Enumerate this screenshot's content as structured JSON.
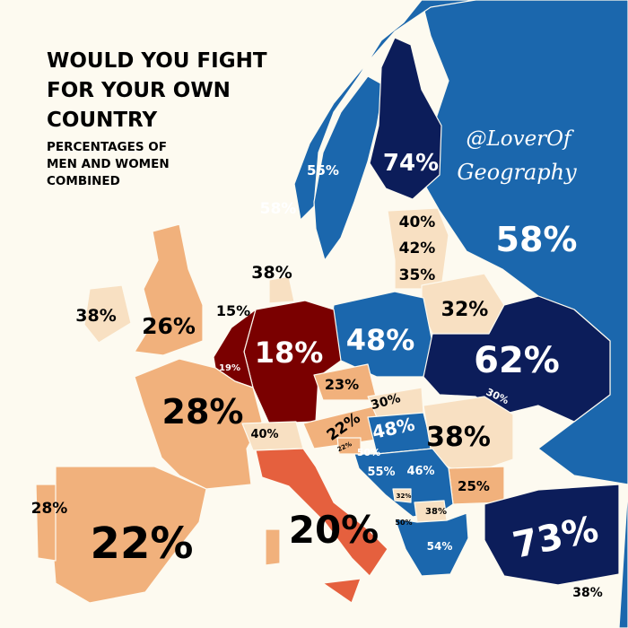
{
  "title": {
    "line1": "WOULD YOU FIGHT",
    "line2": "FOR YOUR OWN",
    "line3": "COUNTRY",
    "sub1": "PERCENTAGES OF",
    "sub2": "MEN AND WOMEN",
    "sub3": "COMBINED"
  },
  "watermark": {
    "line1": "@LoverOf",
    "line2": "Geography"
  },
  "colors": {
    "sea": "#fdfaf0",
    "navy": "#0c1d5a",
    "blue": "#1b67ad",
    "light": "#f8e0c2",
    "tan": "#f1b17c",
    "orange": "#e5603e",
    "darkred": "#7a0000"
  },
  "labels": {
    "russia": "58%",
    "finland": "74%",
    "norway": "55%",
    "sweden": "58%",
    "estonia": "40%",
    "latvia": "42%",
    "lithuania": "35%",
    "belarus": "32%",
    "denmark": "38%",
    "ireland": "38%",
    "uk": "26%",
    "netherlands": "15%",
    "germany": "18%",
    "belgium": "19%",
    "poland": "48%",
    "ukraine": "62%",
    "czechia": "23%",
    "slovakia": "30%",
    "moldova": "30%",
    "france": "28%",
    "austria": "22%",
    "hungary": "48%",
    "switzerland": "40%",
    "romania": "38%",
    "slovenia": "22%",
    "croatia": "50%",
    "bosnia": "55%",
    "serbia": "46%",
    "bulgaria": "25%",
    "montenegro": "32%",
    "macedonia": "38%",
    "albania": "50%",
    "portugal": "28%",
    "spain": "22%",
    "italy": "20%",
    "greece": "54%",
    "turkey": "73%",
    "cyprus": "38%"
  }
}
